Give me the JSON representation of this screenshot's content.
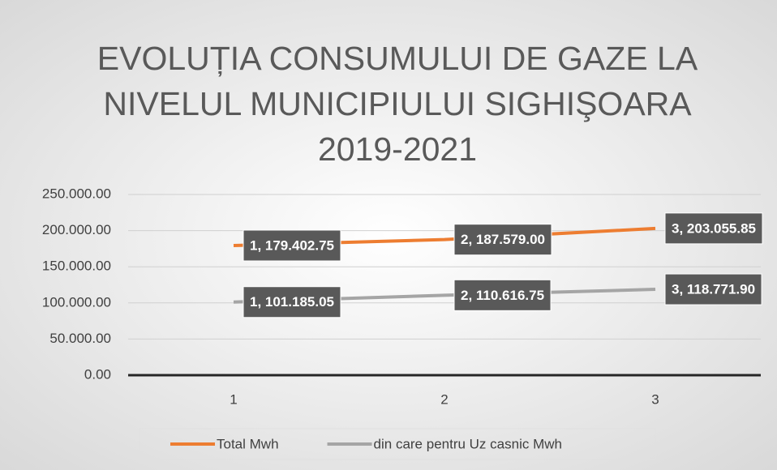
{
  "chart_data": {
    "type": "line",
    "title": [
      "EVOLUȚIA CONSUMULUI DE GAZE LA",
      "NIVELUL MUNICIPIULUI SIGHIŞOARA",
      "2019-2021"
    ],
    "categories": [
      "1",
      "2",
      "3"
    ],
    "series": [
      {
        "name": "Total Mwh",
        "color": "#ED7D31",
        "values": [
          179402.75,
          187579.0,
          203055.85
        ],
        "value_labels": [
          "1, 179.402.75",
          "2, 187.579.00",
          "3, 203.055.85"
        ]
      },
      {
        "name": "din care pentru Uz casnic Mwh",
        "color": "#A5A5A5",
        "values": [
          101185.05,
          110616.75,
          118771.9
        ],
        "value_labels": [
          "1, 101.185.05",
          "2, 110.616.75",
          "3, 118.771.90"
        ]
      }
    ],
    "ylim": [
      0,
      250000
    ],
    "yticks": [
      {
        "value": 0,
        "label": "0.00"
      },
      {
        "value": 50000,
        "label": "50.000.00"
      },
      {
        "value": 100000,
        "label": "100.000.00"
      },
      {
        "value": 150000,
        "label": "150.000.00"
      },
      {
        "value": 200000,
        "label": "200.000.00"
      },
      {
        "value": 250000,
        "label": "250.000.00"
      }
    ],
    "grid": true,
    "legend": "bottom"
  }
}
